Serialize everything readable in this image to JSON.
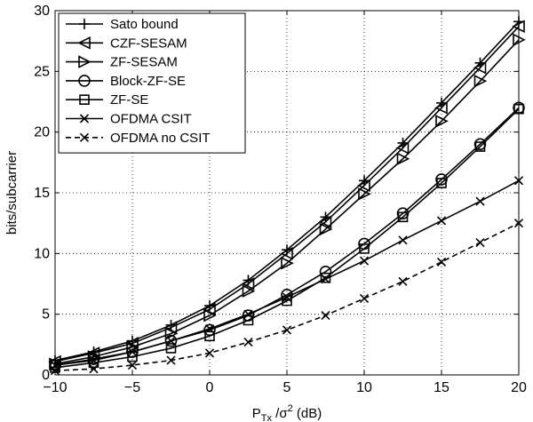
{
  "chart_data": {
    "type": "line",
    "title": "",
    "xlabel": "P_Tx /σ² (dB)",
    "xlabel_parts": {
      "main": "P",
      "sub": "Tx",
      "mid": " /σ",
      "sup": "2",
      "end": " (dB)"
    },
    "ylabel": "bits/subcarrier",
    "xlim": [
      -10,
      20
    ],
    "ylim": [
      0,
      30
    ],
    "xticks": [
      -10,
      -5,
      0,
      5,
      10,
      15,
      20
    ],
    "yticks": [
      0,
      5,
      10,
      15,
      20,
      25,
      30
    ],
    "grid": true,
    "legend_position": "top-left",
    "x": [
      -10,
      -7.5,
      -5,
      -2.5,
      0,
      2.5,
      5,
      7.5,
      10,
      12.5,
      15,
      17.5,
      20
    ],
    "series": [
      {
        "name": "Sato bound",
        "marker": "plus",
        "dash": "solid",
        "values": [
          1.2,
          1.9,
          2.8,
          4.1,
          5.7,
          7.8,
          10.3,
          13.0,
          16.0,
          19.1,
          22.4,
          25.7,
          29.1
        ]
      },
      {
        "name": "CZF-SESAM",
        "marker": "triangle-left",
        "dash": "solid",
        "values": [
          1.1,
          1.8,
          2.6,
          3.9,
          5.4,
          7.5,
          10.0,
          12.6,
          15.6,
          18.7,
          22.0,
          25.3,
          28.7
        ]
      },
      {
        "name": "ZF-SESAM",
        "marker": "triangle-right",
        "dash": "solid",
        "values": [
          0.9,
          1.5,
          2.3,
          3.4,
          4.9,
          6.9,
          9.2,
          12.0,
          14.9,
          17.8,
          20.9,
          24.2,
          27.6
        ]
      },
      {
        "name": "Block-ZF-SE",
        "marker": "circle",
        "dash": "solid",
        "values": [
          0.8,
          1.3,
          1.9,
          2.8,
          3.7,
          4.9,
          6.6,
          8.5,
          10.8,
          13.3,
          16.1,
          19.0,
          22.0
        ]
      },
      {
        "name": "ZF-SE",
        "marker": "square",
        "dash": "solid",
        "values": [
          0.6,
          1.0,
          1.5,
          2.2,
          3.2,
          4.5,
          6.1,
          8.0,
          10.4,
          13.0,
          15.8,
          18.8,
          21.9
        ]
      },
      {
        "name": "OFDMA CSIT",
        "marker": "x",
        "dash": "solid",
        "values": [
          0.8,
          1.2,
          1.9,
          2.8,
          3.8,
          5.0,
          6.4,
          7.9,
          9.4,
          11.1,
          12.7,
          14.3,
          16.0
        ]
      },
      {
        "name": "OFDMA no CSIT",
        "marker": "x",
        "dash": "dashed",
        "values": [
          0.35,
          0.5,
          0.8,
          1.2,
          1.8,
          2.7,
          3.7,
          4.9,
          6.3,
          7.7,
          9.3,
          10.9,
          12.5
        ]
      }
    ]
  }
}
